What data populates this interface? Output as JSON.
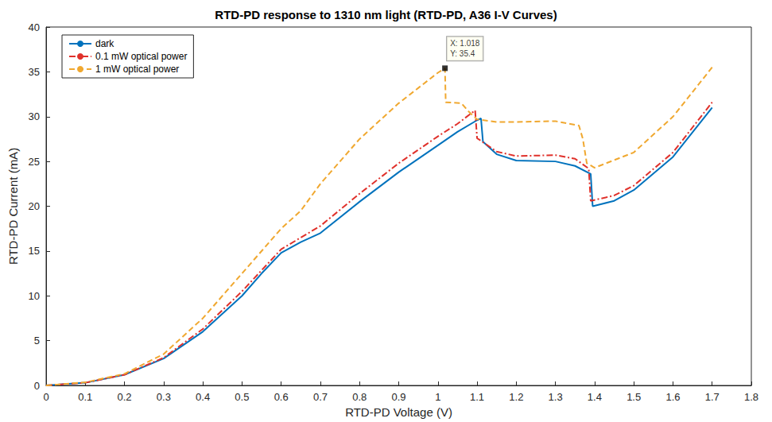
{
  "chart_data": {
    "type": "line",
    "title": "RTD-PD response to 1310 nm light (RTD-PD, A36 I-V Curves)",
    "x_label": "RTD-PD Voltage (V)",
    "y_label": "RTD-PD Current (mA)",
    "xlim": [
      0,
      1.8
    ],
    "xticks": [
      0,
      0.1,
      0.2,
      0.3,
      0.4,
      0.5,
      0.6,
      0.7,
      0.8,
      0.9,
      1,
      1.1,
      1.2,
      1.3,
      1.4,
      1.5,
      1.6,
      1.7,
      1.8
    ],
    "ylim": [
      0,
      40
    ],
    "yticks": [
      0,
      5,
      10,
      15,
      20,
      25,
      30,
      35,
      40
    ],
    "grid": false,
    "legend": "upper left",
    "series": [
      {
        "name": "dark",
        "color": "#0072bd",
        "line_style": "solid",
        "x": [
          0,
          0.1,
          0.2,
          0.3,
          0.4,
          0.5,
          0.55,
          0.6,
          0.65,
          0.7,
          0.8,
          0.9,
          1.0,
          1.05,
          1.1,
          1.11,
          1.115,
          1.15,
          1.2,
          1.3,
          1.35,
          1.39,
          1.395,
          1.45,
          1.5,
          1.6,
          1.7
        ],
        "values": [
          0,
          0.3,
          1.2,
          3.0,
          6.0,
          10.0,
          12.5,
          14.8,
          16.0,
          17.0,
          20.5,
          23.8,
          26.8,
          28.3,
          29.6,
          29.8,
          27.2,
          25.8,
          25.1,
          25.0,
          24.5,
          23.6,
          20.0,
          20.6,
          21.8,
          25.5,
          31.0
        ]
      },
      {
        "name": "0.1 mW optical power",
        "color": "#e0312b",
        "line_style": "dashdot",
        "x": [
          0,
          0.1,
          0.2,
          0.3,
          0.4,
          0.5,
          0.6,
          0.65,
          0.7,
          0.8,
          0.9,
          1.0,
          1.05,
          1.095,
          1.1,
          1.15,
          1.2,
          1.3,
          1.35,
          1.385,
          1.39,
          1.45,
          1.5,
          1.6,
          1.7
        ],
        "values": [
          0,
          0.3,
          1.2,
          3.1,
          6.3,
          10.5,
          15.2,
          16.5,
          17.8,
          21.4,
          24.8,
          27.8,
          29.2,
          30.7,
          27.6,
          26.1,
          25.6,
          25.7,
          25.3,
          24.2,
          20.6,
          21.2,
          22.3,
          26.0,
          31.6
        ]
      },
      {
        "name": "1 mW optical power",
        "color": "#f0a830",
        "line_style": "dashed",
        "x": [
          0,
          0.1,
          0.2,
          0.3,
          0.4,
          0.5,
          0.6,
          0.65,
          0.7,
          0.8,
          0.9,
          1.0,
          1.018,
          1.02,
          1.06,
          1.08,
          1.1,
          1.15,
          1.2,
          1.3,
          1.36,
          1.37,
          1.38,
          1.4,
          1.5,
          1.6,
          1.7
        ],
        "values": [
          0,
          0.35,
          1.3,
          3.5,
          7.5,
          12.5,
          17.5,
          19.5,
          22.5,
          27.5,
          31.5,
          34.9,
          35.4,
          31.6,
          31.5,
          30.5,
          29.7,
          29.4,
          29.4,
          29.5,
          29.0,
          27.5,
          24.8,
          24.3,
          26.0,
          30.0,
          35.5
        ]
      }
    ],
    "annotations": [
      {
        "x": 1.018,
        "y": 35.4,
        "text": [
          "X: 1.018",
          "Y: 35.4"
        ]
      }
    ]
  }
}
